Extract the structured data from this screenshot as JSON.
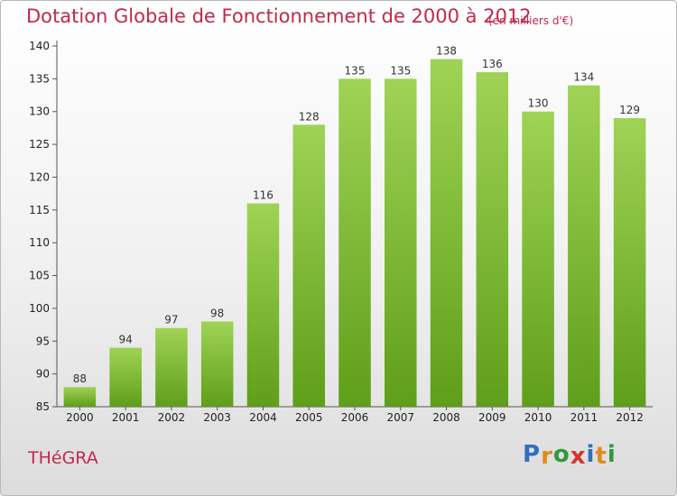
{
  "header": {
    "title": "Dotation Globale de Fonctionnement de 2000 à 2012",
    "unit": "(en milliers d'€)"
  },
  "footer": {
    "commune": "THéGRA",
    "logo_letters": [
      "P",
      "r",
      "o",
      "x",
      "i",
      "t",
      "i"
    ],
    "logo_colors": [
      "#2f6fc0",
      "#e08a1e",
      "#2f9a3a",
      "#d8342b",
      "#2f6fc0",
      "#e08a1e",
      "#2f9a3a"
    ]
  },
  "colors": {
    "bar_top": "#9fd355",
    "bar_bottom": "#5f9e1a",
    "title": "#c0294d"
  },
  "chart_data": {
    "type": "bar",
    "title": "Dotation Globale de Fonctionnement de 2000 à 2012",
    "subtitle": "(en milliers d'€)",
    "categories": [
      "2000",
      "2001",
      "2002",
      "2003",
      "2004",
      "2005",
      "2006",
      "2007",
      "2008",
      "2009",
      "2010",
      "2011",
      "2012"
    ],
    "values": [
      88,
      94,
      97,
      98,
      116,
      128,
      135,
      135,
      138,
      136,
      130,
      134,
      129
    ],
    "ylim": [
      85,
      140
    ],
    "yticks": [
      85,
      90,
      95,
      100,
      105,
      110,
      115,
      120,
      125,
      130,
      135,
      140
    ],
    "grid": false,
    "legend": "none"
  }
}
